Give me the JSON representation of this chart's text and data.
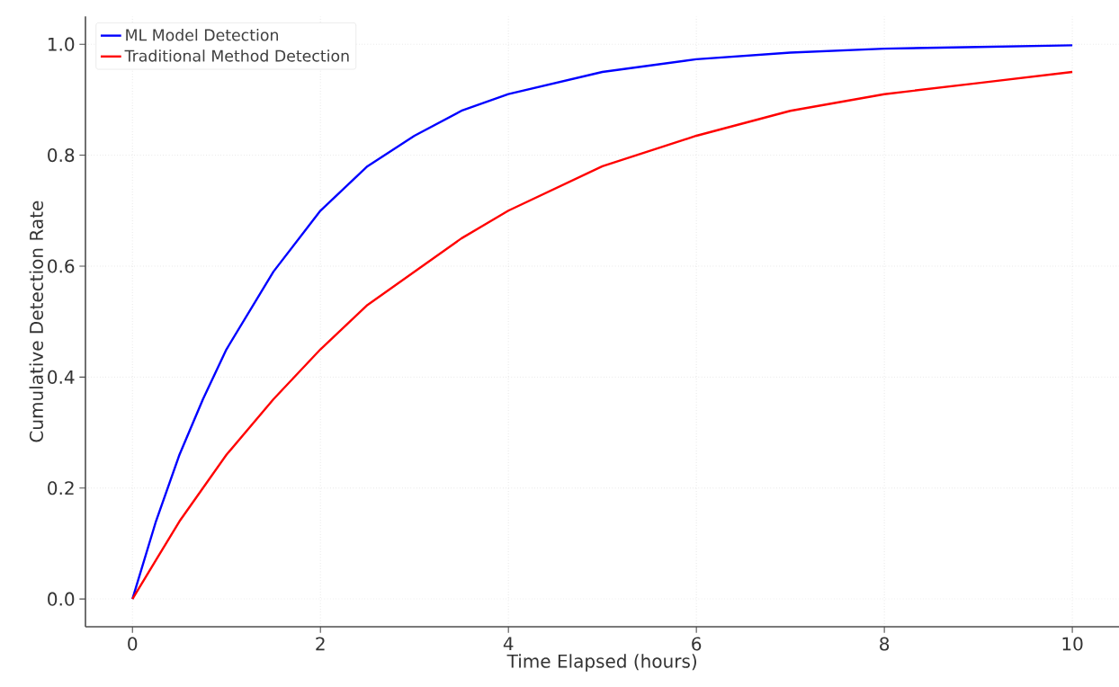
{
  "chart_data": {
    "type": "line",
    "xlabel": "Time Elapsed (hours)",
    "ylabel": "Cumulative Detection Rate",
    "x": [
      0,
      0.25,
      0.5,
      0.75,
      1,
      1.5,
      2,
      2.5,
      3,
      3.5,
      4,
      5,
      6,
      7,
      8,
      9,
      10
    ],
    "series": [
      {
        "name": "ML Model Detection",
        "color": "#0000ff",
        "values": [
          0,
          0.14,
          0.26,
          0.36,
          0.45,
          0.59,
          0.7,
          0.78,
          0.835,
          0.88,
          0.91,
          0.95,
          0.973,
          0.985,
          0.992,
          0.995,
          0.998
        ]
      },
      {
        "name": "Traditional Method Detection",
        "color": "#ff0000",
        "values": [
          0,
          0.07,
          0.14,
          0.2,
          0.26,
          0.36,
          0.45,
          0.53,
          0.59,
          0.65,
          0.7,
          0.78,
          0.835,
          0.88,
          0.91,
          0.93,
          0.95
        ]
      }
    ],
    "xlim": [
      -0.5,
      10.5
    ],
    "ylim": [
      -0.05,
      1.05
    ],
    "xticks": [
      0,
      2,
      4,
      6,
      8,
      10
    ],
    "yticks": [
      {
        "value": 0,
        "label": "0.0"
      },
      {
        "value": 0.2,
        "label": "0.2"
      },
      {
        "value": 0.4,
        "label": "0.4"
      },
      {
        "value": 0.6,
        "label": "0.6"
      },
      {
        "value": 0.8,
        "label": "0.8"
      },
      {
        "value": 1,
        "label": "1.0"
      }
    ],
    "grid": true,
    "legend": "top left",
    "marker": "none",
    "line_style": "solid"
  }
}
